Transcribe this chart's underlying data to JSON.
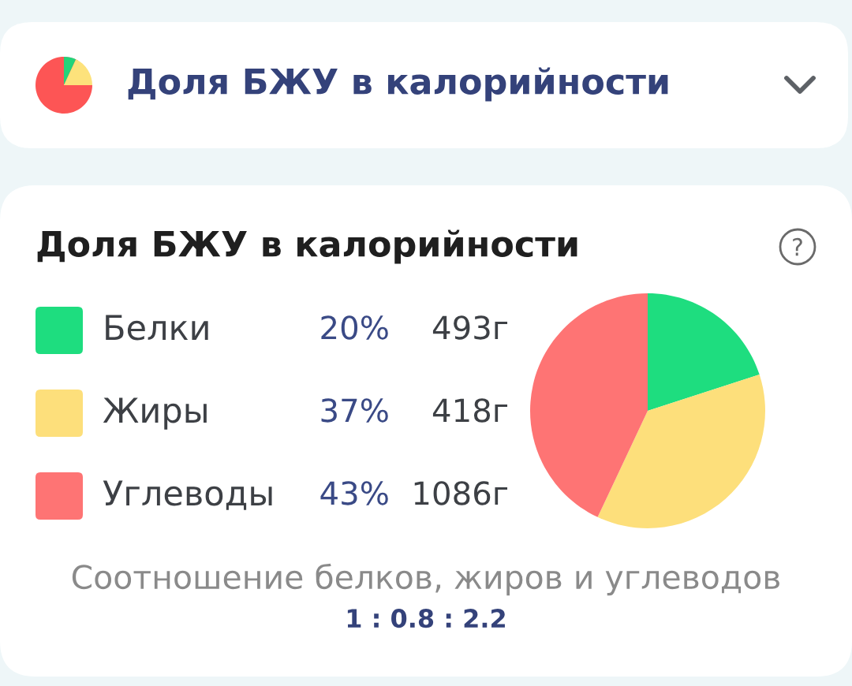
{
  "chart_data": {
    "type": "pie",
    "title": "Доля БЖУ в калорийности",
    "subtitle": "Доля БЖУ в калорийности",
    "categories": [
      "Белки",
      "Жиры",
      "Углеводы"
    ],
    "values": [
      20,
      37,
      43
    ],
    "colors": [
      "#1edd7f",
      "#fddf7b",
      "#fe7474"
    ],
    "value_labels": [
      "20%",
      "37%",
      "43%"
    ],
    "legend": "left",
    "annotations": [
      "493г",
      "418г",
      "1086г",
      "Соотношение белков, жиров и углеводов",
      "1 : 0.8 : 2.2"
    ]
  }
}
